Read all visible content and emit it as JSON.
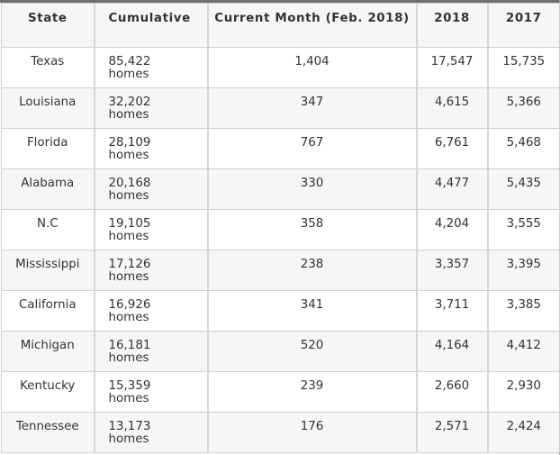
{
  "table": {
    "headers": [
      "State",
      "Cumulative",
      "Current Month (Feb. 2018)",
      "2018",
      "2017"
    ],
    "rows": [
      {
        "state": "Texas",
        "cum_value": "85,422",
        "cum_unit": "homes",
        "current": "1,404",
        "y2018": "17,547",
        "y2017": "15,735"
      },
      {
        "state": "Louisiana",
        "cum_value": "32,202",
        "cum_unit": "homes",
        "current": "347",
        "y2018": "4,615",
        "y2017": "5,366"
      },
      {
        "state": "Florida",
        "cum_value": "28,109",
        "cum_unit": "homes",
        "current": "767",
        "y2018": "6,761",
        "y2017": "5,468"
      },
      {
        "state": "Alabama",
        "cum_value": "20,168",
        "cum_unit": "homes",
        "current": "330",
        "y2018": "4,477",
        "y2017": "5,435"
      },
      {
        "state": "N.C",
        "cum_value": "19,105",
        "cum_unit": "homes",
        "current": "358",
        "y2018": "4,204",
        "y2017": "3,555"
      },
      {
        "state": "Mississippi",
        "cum_value": "17,126",
        "cum_unit": "homes",
        "current": "238",
        "y2018": "3,357",
        "y2017": "3,395"
      },
      {
        "state": "California",
        "cum_value": "16,926",
        "cum_unit": "homes",
        "current": "341",
        "y2018": "3,711",
        "y2017": "3,385"
      },
      {
        "state": "Michigan",
        "cum_value": "16,181",
        "cum_unit": "homes",
        "current": "520",
        "y2018": "4,164",
        "y2017": "4,412"
      },
      {
        "state": "Kentucky",
        "cum_value": "15,359",
        "cum_unit": "homes",
        "current": "239",
        "y2018": "2,660",
        "y2017": "2,930"
      },
      {
        "state": "Tennessee",
        "cum_value": "13,173",
        "cum_unit": "homes",
        "current": "176",
        "y2018": "2,571",
        "y2017": "2,424"
      }
    ]
  }
}
